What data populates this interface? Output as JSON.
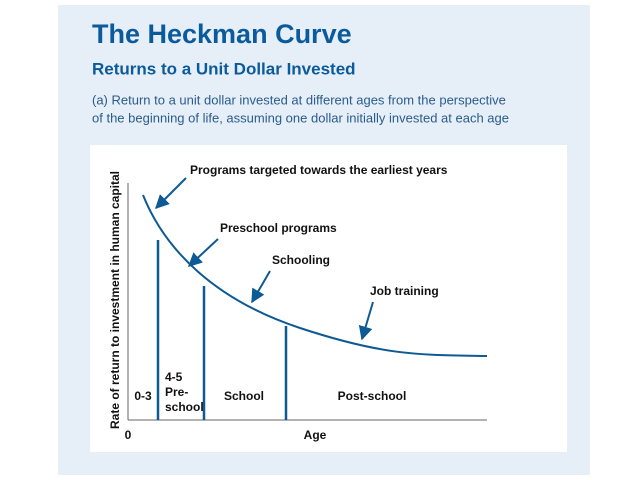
{
  "header": {
    "title": "The Heckman Curve",
    "subtitle": "Returns to a Unit Dollar Invested",
    "description": [
      "(a) Return to a unit dollar invested at different ages from the perspective",
      "of the beginning of life, assuming one dollar initially invested at each age"
    ]
  },
  "diagram": {
    "y_axis_label": "Rate of return to investment in human capital",
    "x_axis_label": "Age",
    "origin_label": "0",
    "annotations": [
      "Programs targeted towards the earliest years",
      "Preschool programs",
      "Schooling",
      "Job training"
    ],
    "stages": [
      [
        "0-3"
      ],
      [
        "4-5",
        "Pre-",
        "school"
      ],
      [
        "School"
      ],
      [
        "Post-school"
      ]
    ]
  }
}
